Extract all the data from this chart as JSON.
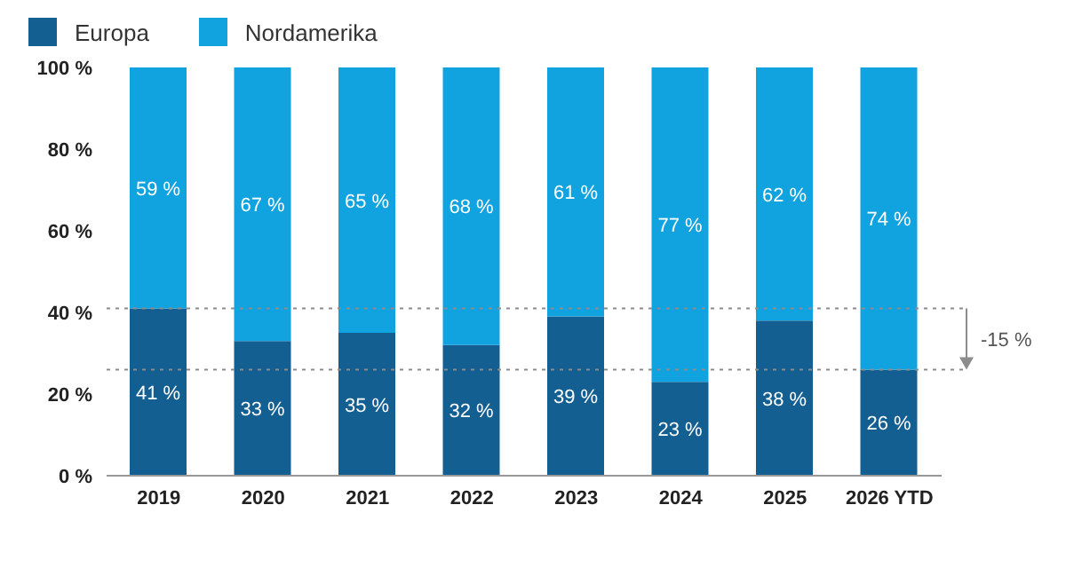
{
  "chart_data": {
    "type": "bar",
    "stacked": true,
    "categories": [
      "2019",
      "2020",
      "2021",
      "2022",
      "2023",
      "2024",
      "2025",
      "2026 YTD"
    ],
    "series": [
      {
        "name": "Europa",
        "color": "#135f91",
        "values": [
          41,
          33,
          35,
          32,
          39,
          23,
          38,
          26
        ],
        "value_labels": [
          "41 %",
          "33 %",
          "35 %",
          "32 %",
          "39 %",
          "23 %",
          "38 %",
          "26 %"
        ]
      },
      {
        "name": "Nordamerika",
        "color": "#11a3df",
        "values": [
          59,
          67,
          65,
          68,
          61,
          77,
          62,
          74
        ],
        "value_labels": [
          "59 %",
          "67 %",
          "65 %",
          "68 %",
          "61 %",
          "77 %",
          "62 %",
          "74 %"
        ]
      }
    ],
    "ylim": [
      0,
      100
    ],
    "yticks": [
      {
        "value": 0,
        "label": "0 %"
      },
      {
        "value": 20,
        "label": "20 %"
      },
      {
        "value": 40,
        "label": "40 %"
      },
      {
        "value": 60,
        "label": "60 %"
      },
      {
        "value": 80,
        "label": "80 %"
      },
      {
        "value": 100,
        "label": "100 %"
      }
    ],
    "ref_lines": [
      {
        "axis": "y",
        "value": 41,
        "line_style": "dotted",
        "color": "#8c8c8c"
      },
      {
        "axis": "y",
        "value": 26,
        "line_style": "dotted",
        "color": "#8c8c8c"
      }
    ],
    "annotations": [
      "-15 %"
    ],
    "grid": false,
    "legend": "top left"
  }
}
